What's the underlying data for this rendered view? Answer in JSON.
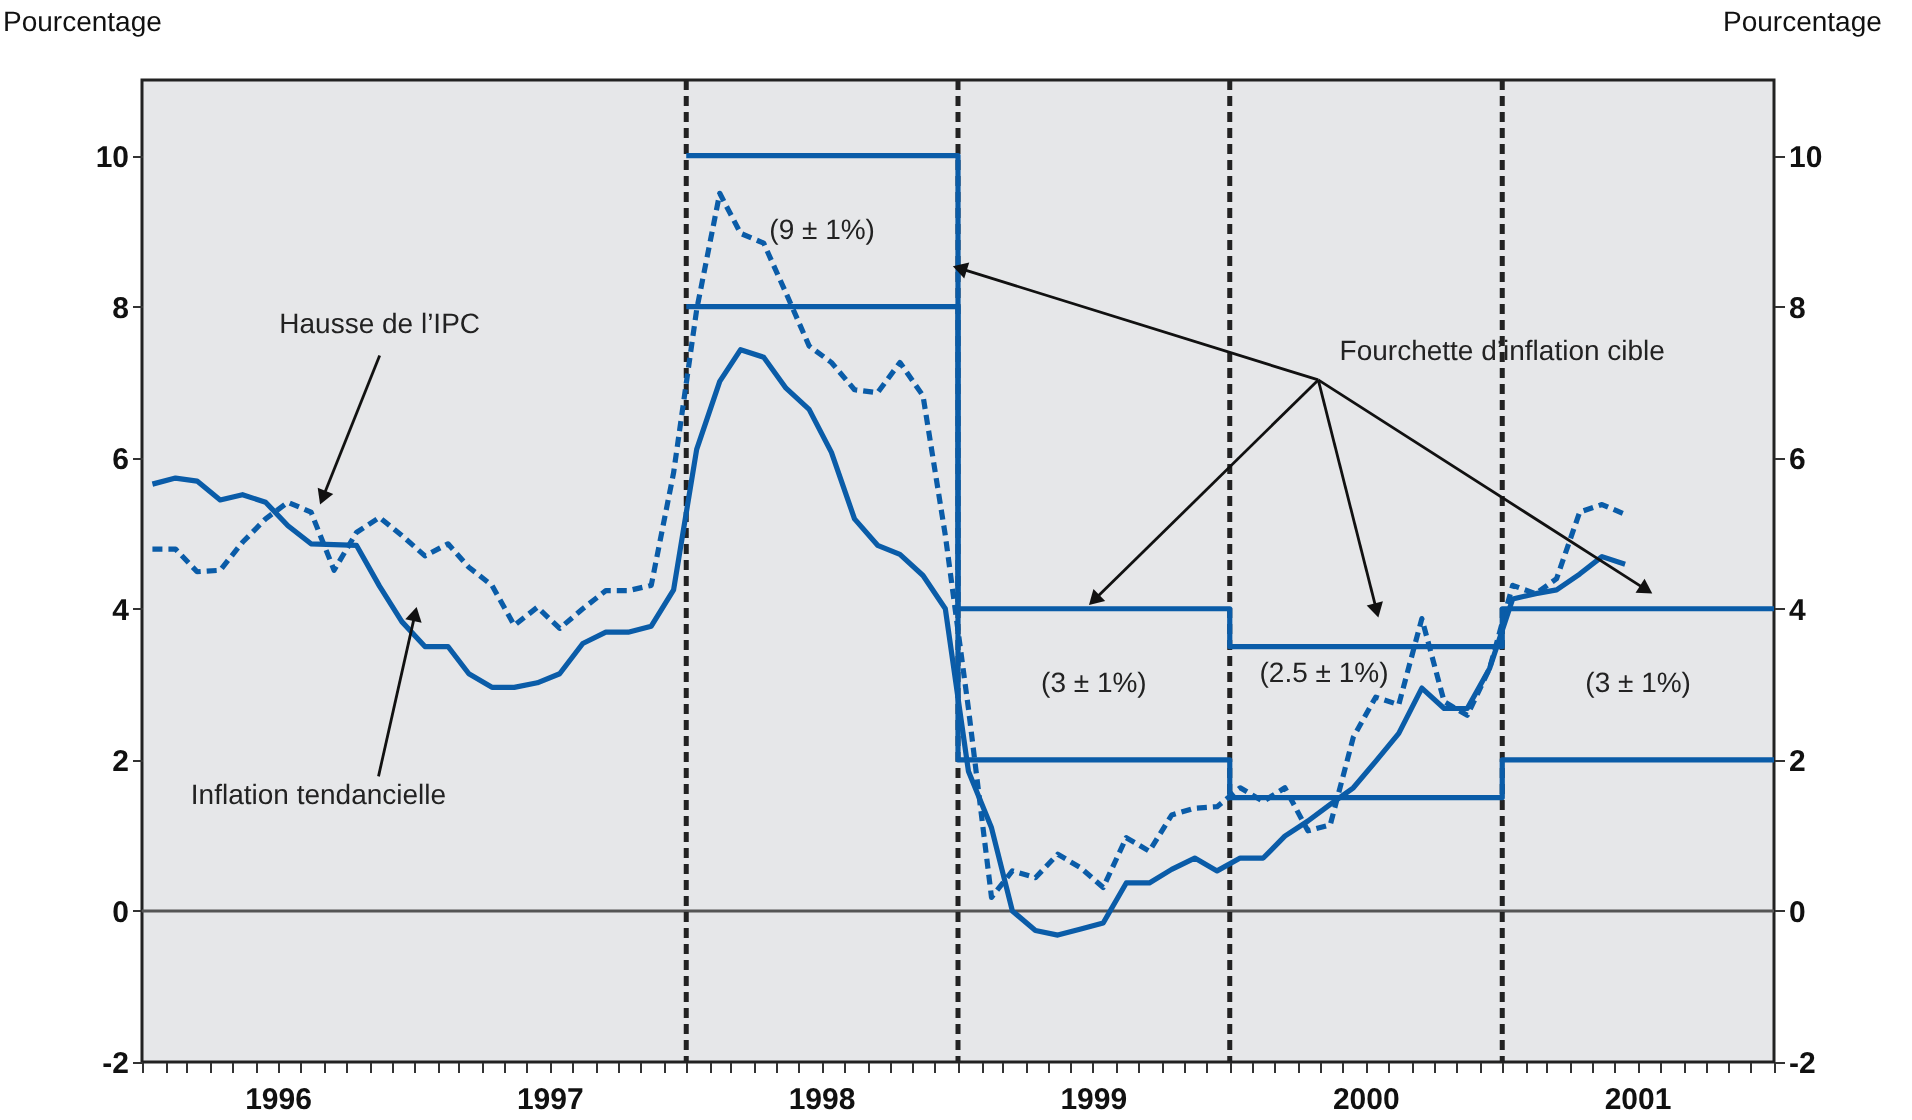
{
  "chart_data": {
    "type": "line",
    "ylabel": "Pourcentage",
    "y2label": "Pourcentage",
    "x": [
      "1996-01-15",
      "1996-02-15",
      "1996-03-15",
      "1996-04-15",
      "1996-05-15",
      "1996-06-15",
      "1996-07-15",
      "1996-08-15",
      "1996-09-15",
      "1996-10-15",
      "1996-11-15",
      "1996-12-15",
      "1997-01-15",
      "1997-02-15",
      "1997-03-15",
      "1997-04-15",
      "1997-05-15",
      "1997-06-15",
      "1997-07-15",
      "1997-08-15",
      "1997-09-15",
      "1997-10-15",
      "1997-11-15",
      "1997-12-15",
      "1998-01-15",
      "1998-02-15",
      "1998-03-15",
      "1998-04-15",
      "1998-05-15",
      "1998-06-15",
      "1998-07-15",
      "1998-08-15",
      "1998-09-15",
      "1998-10-15",
      "1998-11-15",
      "1998-12-15",
      "1999-01-15",
      "1999-02-15",
      "1999-03-15",
      "1999-04-15",
      "1999-05-15",
      "1999-06-15",
      "1999-07-15",
      "1999-08-15",
      "1999-09-15",
      "1999-10-15",
      "1999-11-15",
      "1999-12-15",
      "2000-01-15",
      "2000-02-15",
      "2000-03-15",
      "2000-04-15",
      "2000-05-15",
      "2000-06-15",
      "2000-07-15",
      "2000-08-15",
      "2000-09-15",
      "2000-10-15",
      "2000-11-15",
      "2000-12-15",
      "2001-01-15",
      "2001-02-15",
      "2001-03-15",
      "2001-04-15",
      "2001-05-15",
      "2001-06-15"
    ],
    "series": [
      {
        "color": "#0a5ca8",
        "line_style": "solid",
        "values": [
          5.65,
          5.73,
          5.69,
          5.44,
          5.51,
          5.41,
          5.1,
          4.86,
          4.85,
          4.84,
          4.3,
          3.83,
          3.5,
          3.5,
          3.14,
          2.96,
          2.96,
          3.02,
          3.14,
          3.54,
          3.69,
          3.69,
          3.77,
          4.25,
          6.11,
          7.01,
          7.43,
          7.33,
          6.92,
          6.64,
          6.07,
          5.19,
          4.84,
          4.72,
          4.44,
          4.0,
          1.85,
          1.1,
          0.0,
          -0.26,
          -0.32,
          -0.24,
          -0.16,
          0.37,
          0.37,
          0.55,
          0.7,
          0.53,
          0.7,
          0.7,
          0.99,
          1.19,
          1.41,
          1.63,
          1.98,
          2.35,
          2.95,
          2.68,
          2.68,
          3.21,
          4.13,
          4.2,
          4.25,
          4.46,
          4.69,
          4.59
        ]
      },
      {
        "color": "#0a5ca8",
        "line_style": "dashed",
        "values": [
          4.79,
          4.79,
          4.49,
          4.51,
          4.88,
          5.19,
          5.41,
          5.28,
          4.51,
          5.01,
          5.21,
          4.97,
          4.7,
          4.86,
          4.55,
          4.31,
          3.78,
          4.02,
          3.74,
          4.0,
          4.24,
          4.24,
          4.31,
          5.8,
          7.96,
          9.5,
          8.97,
          8.84,
          8.18,
          7.48,
          7.26,
          6.9,
          6.86,
          7.26,
          6.82,
          4.97,
          2.68,
          0.18,
          0.53,
          0.44,
          0.75,
          0.57,
          0.31,
          0.97,
          0.79,
          1.27,
          1.36,
          1.38,
          1.63,
          1.45,
          1.63,
          1.06,
          1.14,
          2.3,
          2.83,
          2.73,
          3.87,
          2.77,
          2.59,
          3.21,
          4.31,
          4.2,
          4.4,
          5.28,
          5.38,
          5.25
        ]
      },
      {
        "type": "step",
        "color": "#0a5ca8",
        "line_style": "solid",
        "x": [
          "1998-01",
          "1999-01",
          "2000-01",
          "2001-01",
          "2002-01"
        ],
        "values": [
          10,
          4,
          3.5,
          4,
          4
        ]
      },
      {
        "type": "step",
        "color": "#0a5ca8",
        "line_style": "solid",
        "x": [
          "1998-01",
          "1999-01",
          "2000-01",
          "2001-01",
          "2002-01"
        ],
        "values": [
          8,
          2,
          1.5,
          2,
          2
        ]
      }
    ],
    "xlim": [
      "1996-01",
      "2002-01"
    ],
    "xticks": [
      {
        "value": "1996-01",
        "label": null
      },
      {
        "value": "1996-02",
        "label": null
      },
      {
        "value": "1996-03",
        "label": null
      },
      {
        "value": "1996-04",
        "label": null
      },
      {
        "value": "1996-05",
        "label": null
      },
      {
        "value": "1996-06",
        "label": null
      },
      {
        "value": "1996-07",
        "label": "1996"
      },
      {
        "value": "1996-08",
        "label": null
      },
      {
        "value": "1996-09",
        "label": null
      },
      {
        "value": "1996-10",
        "label": null
      },
      {
        "value": "1996-11",
        "label": null
      },
      {
        "value": "1996-12",
        "label": null
      },
      {
        "value": "1997-01",
        "label": null
      },
      {
        "value": "1997-02",
        "label": null
      },
      {
        "value": "1997-03",
        "label": null
      },
      {
        "value": "1997-04",
        "label": null
      },
      {
        "value": "1997-05",
        "label": null
      },
      {
        "value": "1997-06",
        "label": null
      },
      {
        "value": "1997-07",
        "label": "1997"
      },
      {
        "value": "1997-08",
        "label": null
      },
      {
        "value": "1997-09",
        "label": null
      },
      {
        "value": "1997-10",
        "label": null
      },
      {
        "value": "1997-11",
        "label": null
      },
      {
        "value": "1997-12",
        "label": null
      },
      {
        "value": "1998-01",
        "label": null
      },
      {
        "value": "1998-02",
        "label": null
      },
      {
        "value": "1998-03",
        "label": null
      },
      {
        "value": "1998-04",
        "label": null
      },
      {
        "value": "1998-05",
        "label": null
      },
      {
        "value": "1998-06",
        "label": null
      },
      {
        "value": "1998-07",
        "label": "1998"
      },
      {
        "value": "1998-08",
        "label": null
      },
      {
        "value": "1998-09",
        "label": null
      },
      {
        "value": "1998-10",
        "label": null
      },
      {
        "value": "1998-11",
        "label": null
      },
      {
        "value": "1998-12",
        "label": null
      },
      {
        "value": "1999-01",
        "label": null
      },
      {
        "value": "1999-02",
        "label": null
      },
      {
        "value": "1999-03",
        "label": null
      },
      {
        "value": "1999-04",
        "label": null
      },
      {
        "value": "1999-05",
        "label": null
      },
      {
        "value": "1999-06",
        "label": null
      },
      {
        "value": "1999-07",
        "label": "1999"
      },
      {
        "value": "1999-08",
        "label": null
      },
      {
        "value": "1999-09",
        "label": null
      },
      {
        "value": "1999-10",
        "label": null
      },
      {
        "value": "1999-11",
        "label": null
      },
      {
        "value": "1999-12",
        "label": null
      },
      {
        "value": "2000-01",
        "label": null
      },
      {
        "value": "2000-02",
        "label": null
      },
      {
        "value": "2000-03",
        "label": null
      },
      {
        "value": "2000-04",
        "label": null
      },
      {
        "value": "2000-05",
        "label": null
      },
      {
        "value": "2000-06",
        "label": null
      },
      {
        "value": "2000-07",
        "label": "2000"
      },
      {
        "value": "2000-08",
        "label": null
      },
      {
        "value": "2000-09",
        "label": null
      },
      {
        "value": "2000-10",
        "label": null
      },
      {
        "value": "2000-11",
        "label": null
      },
      {
        "value": "2000-12",
        "label": null
      },
      {
        "value": "2001-01",
        "label": null
      },
      {
        "value": "2001-02",
        "label": null
      },
      {
        "value": "2001-03",
        "label": null
      },
      {
        "value": "2001-04",
        "label": null
      },
      {
        "value": "2001-05",
        "label": null
      },
      {
        "value": "2001-06",
        "label": null
      },
      {
        "value": "2001-07",
        "label": "2001"
      },
      {
        "value": "2001-08",
        "label": null
      },
      {
        "value": "2001-09",
        "label": null
      },
      {
        "value": "2001-10",
        "label": null
      },
      {
        "value": "2001-11",
        "label": null
      },
      {
        "value": "2001-12",
        "label": null
      },
      {
        "value": "2002-01",
        "label": null
      }
    ],
    "ylim": [
      -2,
      11
    ],
    "yticks": [
      -2,
      0,
      2,
      4,
      6,
      8,
      10
    ],
    "y2lim": [
      -2,
      11
    ],
    "y2ticks": [
      -2,
      0,
      2,
      4,
      6,
      8,
      10
    ],
    "ref_lines": [
      {
        "axis": "y",
        "value": 0,
        "color": "#555555",
        "line_style": "solid"
      },
      {
        "axis": "x",
        "value": "1998-01",
        "color": "#222222",
        "line_style": "dashed"
      },
      {
        "axis": "x",
        "value": "1999-01",
        "color": "#222222",
        "line_style": "dashed"
      },
      {
        "axis": "x",
        "value": "2000-01",
        "color": "#222222",
        "line_style": "dashed"
      },
      {
        "axis": "x",
        "value": "2001-01",
        "color": "#222222",
        "line_style": "dashed"
      }
    ],
    "annotations": [
      {
        "text": "Hausse de l’IPC",
        "x": "1996-09",
        "y": 5.5
      },
      {
        "text": "Inflation tendancielle",
        "x": "1997-01",
        "y": 3.9
      },
      "(9 ± 1%)",
      "(3 ± 1%)",
      "(2.5 ± 1%)",
      "(3 ± 1%)",
      {
        "text": "Fourchette d’inflation cible",
        "x": "2001-01",
        "y": 7.4
      }
    ],
    "grid": false
  }
}
